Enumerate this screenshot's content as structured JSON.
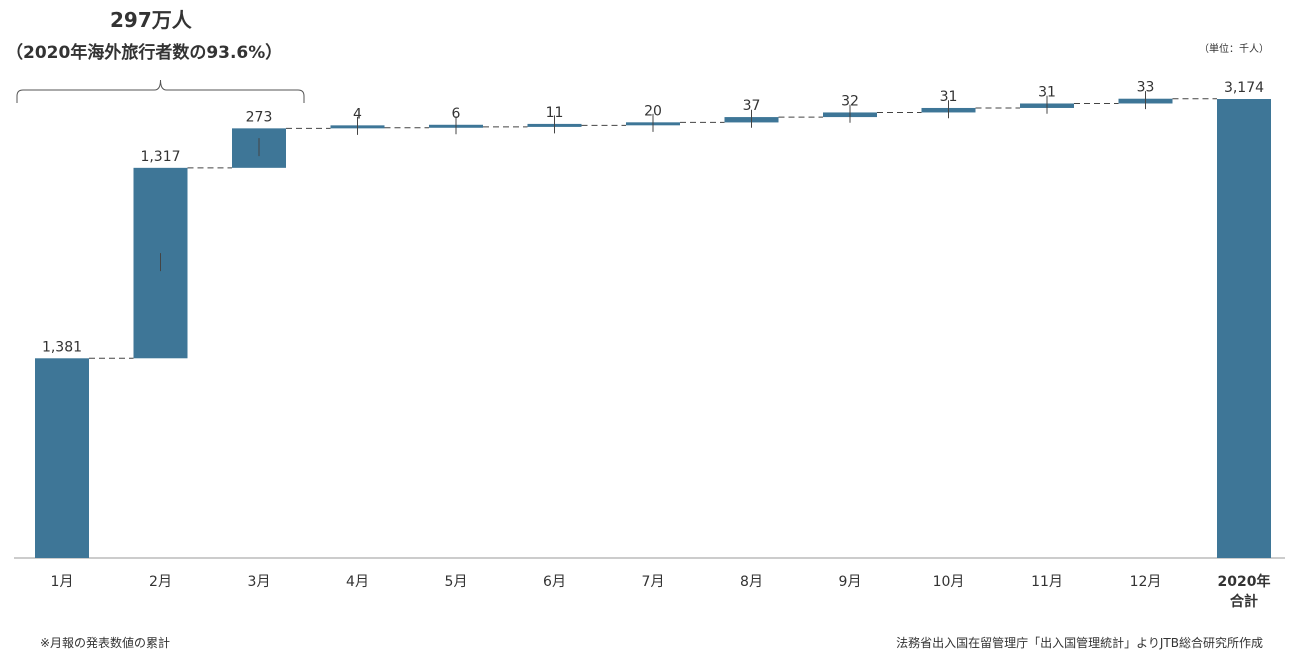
{
  "annotation": {
    "main": "297万人",
    "sub": "（2020年海外旅行者数の93.6%）"
  },
  "unit": "（単位：千人）",
  "footnote": "※月報の発表数値の累計",
  "source": "法務省出入国在留管理庁「出入国管理統計」よりJTB総合研究所作成",
  "colors": {
    "bar": "#3e7697",
    "connector": "#444444",
    "axis": "#999999",
    "text": "#333333"
  },
  "chart_data": {
    "type": "bar",
    "subtype": "waterfall",
    "categories": [
      "1月",
      "2月",
      "3月",
      "4月",
      "5月",
      "6月",
      "7月",
      "8月",
      "9月",
      "10月",
      "11月",
      "12月",
      "2020年\n合計"
    ],
    "values": [
      1381,
      1317,
      273,
      4,
      6,
      11,
      20,
      37,
      32,
      31,
      31,
      33,
      3174
    ],
    "value_labels": [
      "1,381",
      "1,317",
      "273",
      "4",
      "6",
      "11",
      "20",
      "37",
      "32",
      "31",
      "31",
      "33",
      "3,174"
    ],
    "total_index": 12,
    "ylim": [
      0,
      3174
    ],
    "grid": false,
    "legend": "none",
    "bracket_over_categories": [
      0,
      2
    ]
  }
}
